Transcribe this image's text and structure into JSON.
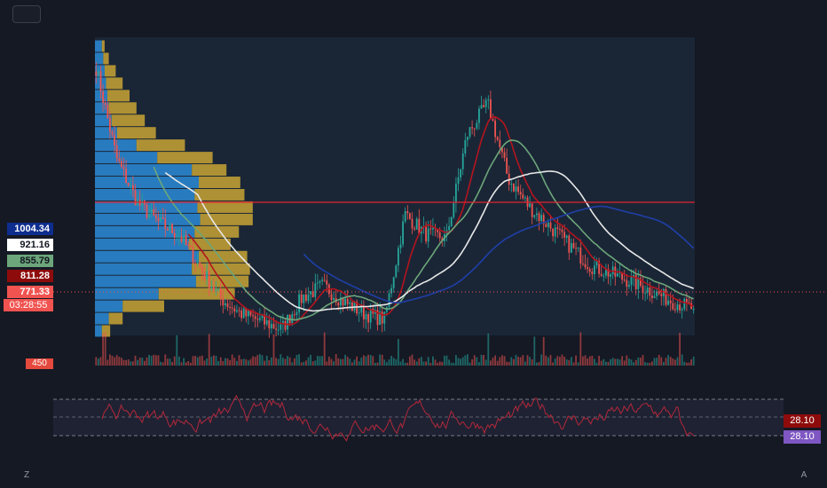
{
  "price_labels": {
    "l1": {
      "text": "1004.34",
      "bg": "#0d2d8f",
      "fg": "#ffffff"
    },
    "l2": {
      "text": "921.16",
      "bg": "#ffffff",
      "fg": "#131722"
    },
    "l3": {
      "text": "855.79",
      "bg": "#6ca67a",
      "fg": "#131722"
    },
    "l4": {
      "text": "811.28",
      "bg": "#8e0b0b",
      "fg": "#ffffff"
    },
    "l5": {
      "text": "771.33",
      "bg": "#f05350",
      "fg": "#ffffff"
    }
  },
  "countdown": "03:28:55",
  "volume_tag": "450",
  "rsi_values": {
    "rsi": "28.10",
    "rsi_ma": "28.10"
  },
  "corner_left": "Z",
  "corner_right": "A",
  "colors": {
    "background": "#151924",
    "up": "#26a69a",
    "down": "#ef5350",
    "poc_line": "#e0242f",
    "vp_up": "#2c8bd6",
    "vp_down": "#c9a534",
    "ma_white": "#e8e8e8",
    "ma_green": "#6ca67a",
    "ma_red": "#b3141e",
    "ma_blue": "#1f3fa8",
    "rsi_line": "#b3283a"
  },
  "chart_data": {
    "type": "candlestick",
    "price_range": [
      700,
      1450
    ],
    "current_price": 771.33,
    "poc_price": 990,
    "ma_levels_last": {
      "ma_blue": 1004.34,
      "ma_white": 921.16,
      "ma_green": 855.79,
      "ma_red": 811.28
    },
    "rsi_band": [
      30,
      70
    ],
    "rsi_last": 28.1,
    "close_path_anchors": [
      1380,
      1150,
      1040,
      990,
      960,
      880,
      800,
      760,
      740,
      720,
      800,
      830,
      790,
      760,
      745,
      1010,
      960,
      950,
      1210,
      1290,
      1100,
      1030,
      980,
      930,
      880,
      860,
      840,
      815,
      790,
      771
    ],
    "volume_profile": [
      {
        "up": 0.05,
        "down": 0.02
      },
      {
        "up": 0.06,
        "down": 0.04
      },
      {
        "up": 0.07,
        "down": 0.08
      },
      {
        "up": 0.08,
        "down": 0.12
      },
      {
        "up": 0.09,
        "down": 0.16
      },
      {
        "up": 0.1,
        "down": 0.2
      },
      {
        "up": 0.12,
        "down": 0.24
      },
      {
        "up": 0.16,
        "down": 0.28
      },
      {
        "up": 0.3,
        "down": 0.35
      },
      {
        "up": 0.45,
        "down": 0.4
      },
      {
        "up": 0.7,
        "down": 0.25
      },
      {
        "up": 0.75,
        "down": 0.3
      },
      {
        "up": 0.72,
        "down": 0.36
      },
      {
        "up": 0.74,
        "down": 0.4
      },
      {
        "up": 0.76,
        "down": 0.38
      },
      {
        "up": 0.72,
        "down": 0.32
      },
      {
        "up": 0.68,
        "down": 0.3
      },
      {
        "up": 0.75,
        "down": 0.35
      },
      {
        "up": 0.7,
        "down": 0.42
      },
      {
        "up": 0.73,
        "down": 0.38
      },
      {
        "up": 0.46,
        "down": 0.55
      },
      {
        "up": 0.2,
        "down": 0.3
      },
      {
        "up": 0.1,
        "down": 0.1
      },
      {
        "up": 0.05,
        "down": 0.06
      }
    ]
  }
}
